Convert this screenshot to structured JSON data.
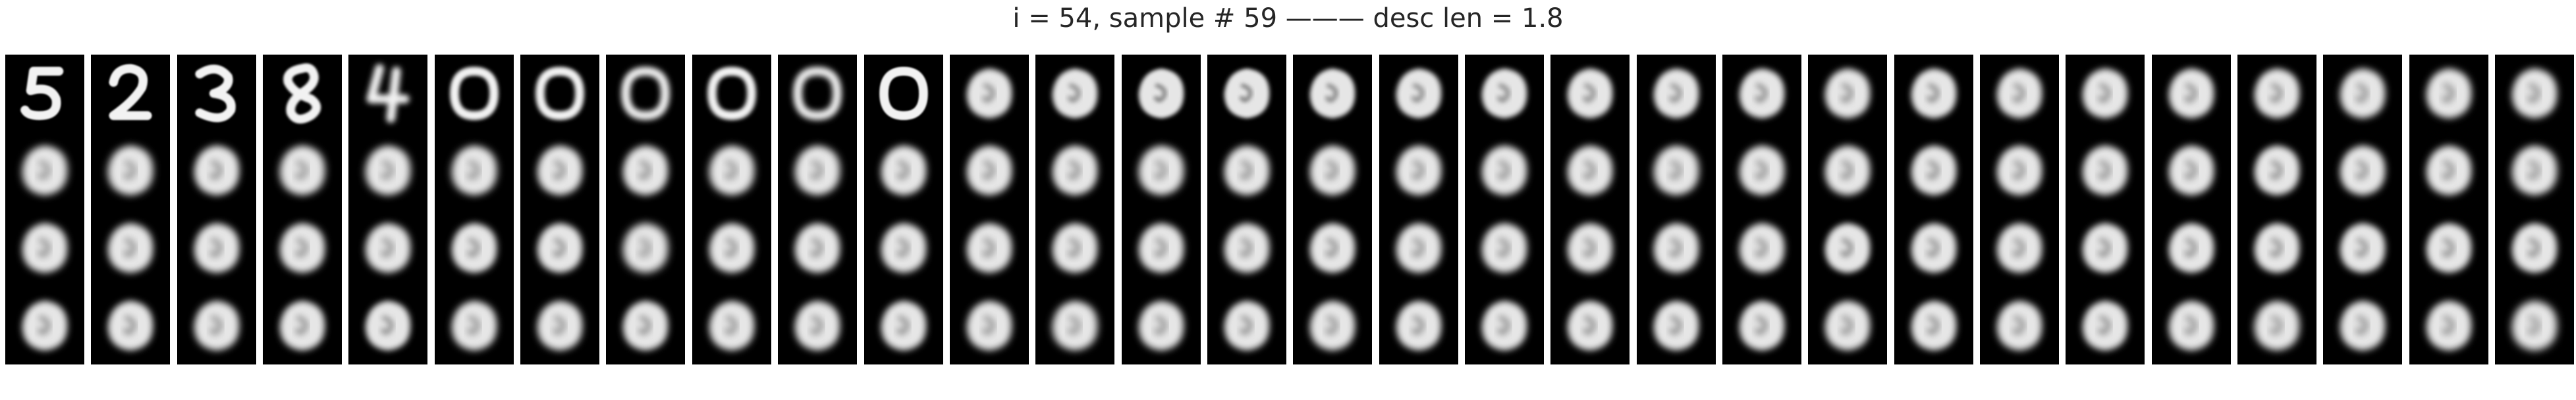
{
  "figure": {
    "title": "i = 54, sample # 59 ——— desc len = 1.8"
  },
  "grid": {
    "rows": 4,
    "cols": 30,
    "cell_background": "#000000",
    "figure_background": "#ffffff",
    "stroke_color": "#f2f2f2",
    "cells": [
      [
        "5",
        "2",
        "3",
        "8",
        "4",
        "0",
        "0",
        "0",
        "0",
        "0",
        "0",
        "0",
        "0",
        "0",
        "0",
        "0",
        "0",
        "0",
        "0",
        "0",
        "0",
        "0",
        "0",
        "0",
        "0",
        "0",
        "0",
        "0",
        "0",
        "0"
      ],
      [
        "0",
        "0",
        "0",
        "0",
        "0",
        "0",
        "0",
        "0",
        "0",
        "0",
        "0",
        "0",
        "0",
        "0",
        "0",
        "0",
        "0",
        "0",
        "0",
        "0",
        "0",
        "0",
        "0",
        "0",
        "0",
        "0",
        "0",
        "0",
        "0",
        "0"
      ],
      [
        "0",
        "0",
        "0",
        "0",
        "0",
        "0",
        "0",
        "0",
        "0",
        "0",
        "0",
        "0",
        "0",
        "0",
        "0",
        "0",
        "0",
        "0",
        "0",
        "0",
        "0",
        "0",
        "0",
        "0",
        "0",
        "0",
        "0",
        "0",
        "0",
        "0"
      ],
      [
        "0",
        "0",
        "0",
        "0",
        "0",
        "0",
        "0",
        "0",
        "0",
        "0",
        "0",
        "0",
        "0",
        "0",
        "0",
        "0",
        "0",
        "0",
        "0",
        "0",
        "0",
        "0",
        "0",
        "0",
        "0",
        "0",
        "0",
        "0",
        "0",
        "0"
      ]
    ],
    "blur": [
      [
        0.6,
        0.6,
        0.7,
        0.9,
        2.2,
        1.4,
        1.6,
        2.2,
        1.6,
        2.4,
        0.6,
        2.4,
        2.0,
        1.6,
        1.6,
        1.8,
        2.0,
        2.0,
        2.2,
        2.4,
        2.4,
        2.6,
        2.4,
        2.6,
        2.6,
        2.6,
        2.6,
        2.8,
        2.8,
        2.8
      ],
      [
        3.0,
        3.0,
        2.8,
        3.0,
        3.0,
        3.0,
        2.8,
        2.8,
        3.0,
        3.0,
        2.8,
        2.8,
        2.8,
        3.0,
        2.8,
        2.8,
        2.8,
        2.8,
        2.8,
        3.0,
        2.8,
        2.8,
        2.6,
        2.8,
        2.8,
        2.8,
        2.6,
        2.8,
        2.8,
        3.0
      ],
      [
        2.8,
        2.8,
        2.8,
        2.8,
        2.8,
        2.6,
        2.6,
        3.2,
        2.8,
        2.8,
        2.8,
        2.8,
        2.8,
        2.8,
        2.8,
        2.6,
        2.8,
        2.8,
        2.8,
        2.8,
        2.8,
        2.4,
        2.6,
        2.8,
        2.6,
        2.6,
        2.6,
        2.6,
        2.6,
        2.6
      ],
      [
        2.6,
        2.6,
        2.8,
        2.6,
        2.4,
        2.8,
        2.8,
        2.6,
        2.8,
        2.8,
        2.6,
        2.8,
        3.0,
        2.8,
        2.6,
        2.8,
        2.6,
        2.6,
        2.6,
        2.6,
        2.6,
        2.8,
        2.6,
        2.8,
        2.6,
        2.8,
        3.0,
        2.8,
        2.8,
        3.2
      ]
    ]
  }
}
